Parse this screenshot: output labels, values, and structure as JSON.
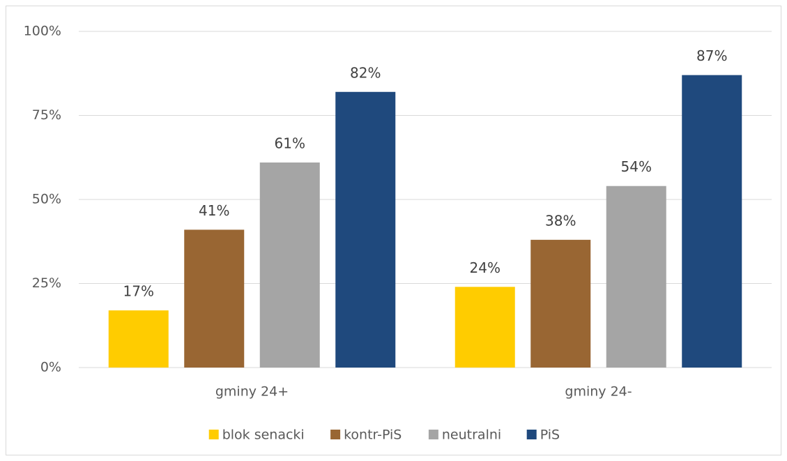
{
  "chart_data": {
    "type": "bar",
    "categories": [
      "gminy 24+",
      "gminy 24-"
    ],
    "series": [
      {
        "name": "blok senacki",
        "color": "#ffcc00",
        "values": [
          17,
          24
        ],
        "value_labels": [
          "17%",
          "24%"
        ]
      },
      {
        "name": "kontr-PiS",
        "color": "#996633",
        "values": [
          41,
          38
        ],
        "value_labels": [
          "41%",
          "38%"
        ]
      },
      {
        "name": "neutralni",
        "color": "#a5a5a5",
        "values": [
          61,
          54
        ],
        "value_labels": [
          "61%",
          "54%"
        ]
      },
      {
        "name": "PiS",
        "color": "#1f497d",
        "values": [
          82,
          87
        ],
        "value_labels": [
          "82%",
          "87%"
        ]
      }
    ],
    "ylim": [
      0,
      100
    ],
    "yticks": [
      {
        "value": 0,
        "label": "0%"
      },
      {
        "value": 25,
        "label": "25%"
      },
      {
        "value": 50,
        "label": "50%"
      },
      {
        "value": 75,
        "label": "75%"
      },
      {
        "value": 100,
        "label": "100%"
      }
    ],
    "grid": true,
    "legend": "bottom"
  }
}
